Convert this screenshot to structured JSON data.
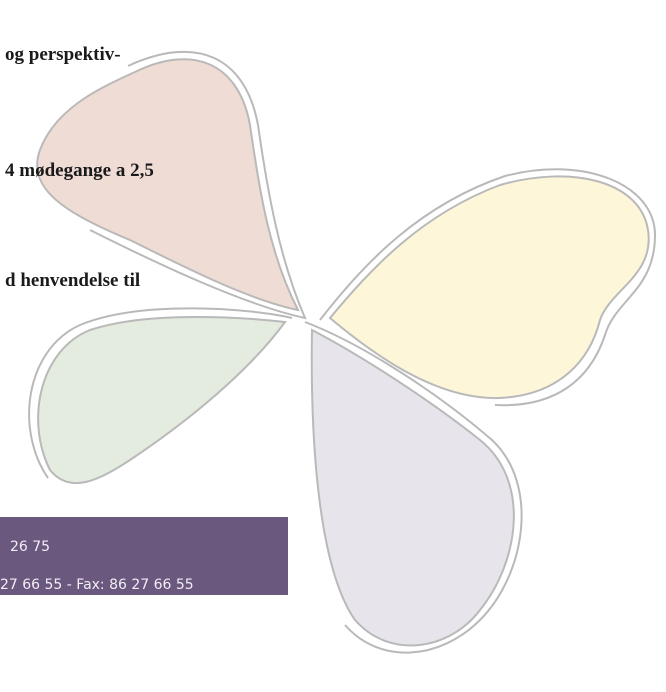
{
  "body": {
    "lines": [
      "og perspektiv-",
      "4 mødegange a 2,5",
      "d henvendelse til"
    ]
  },
  "footer": {
    "lines": [
      "26 75",
      "27 66 55 - Fax: 86 27 66 55"
    ]
  }
}
